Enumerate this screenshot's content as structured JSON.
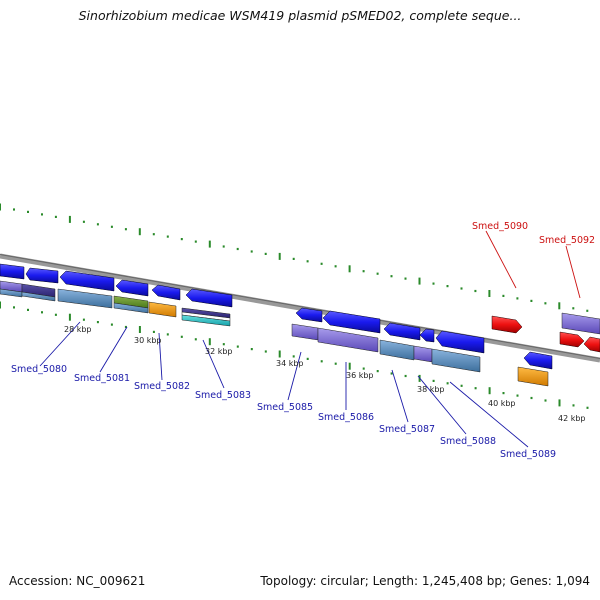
{
  "title": "Sinorhizobium medicae WSM419 plasmid pSMED02, complete seque...",
  "footer": {
    "accession": "Accession: NC_009621",
    "topology": "Topology: circular; Length: 1,245,408 bp; Genes: 1,094"
  },
  "colors": {
    "gene_blue": "#1a1aee",
    "gene_red": "#ee1111",
    "label_blue": "#1a1aa8",
    "label_red": "#cc1111",
    "tick_green": "#2a8a2a",
    "backbone": "#888888"
  },
  "kbp_labels": [
    "28 kbp",
    "30 kbp",
    "32 kbp",
    "34 kbp",
    "36 kbp",
    "38 kbp",
    "40 kbp",
    "42 kbp"
  ],
  "gene_labels_bottom": [
    "Smed_5080",
    "Smed_5081",
    "Smed_5082",
    "Smed_5083",
    "Smed_5085",
    "Smed_5086",
    "Smed_5087",
    "Smed_5088",
    "Smed_5089"
  ],
  "gene_labels_top": [
    "Smed_5090",
    "Smed_5092"
  ]
}
